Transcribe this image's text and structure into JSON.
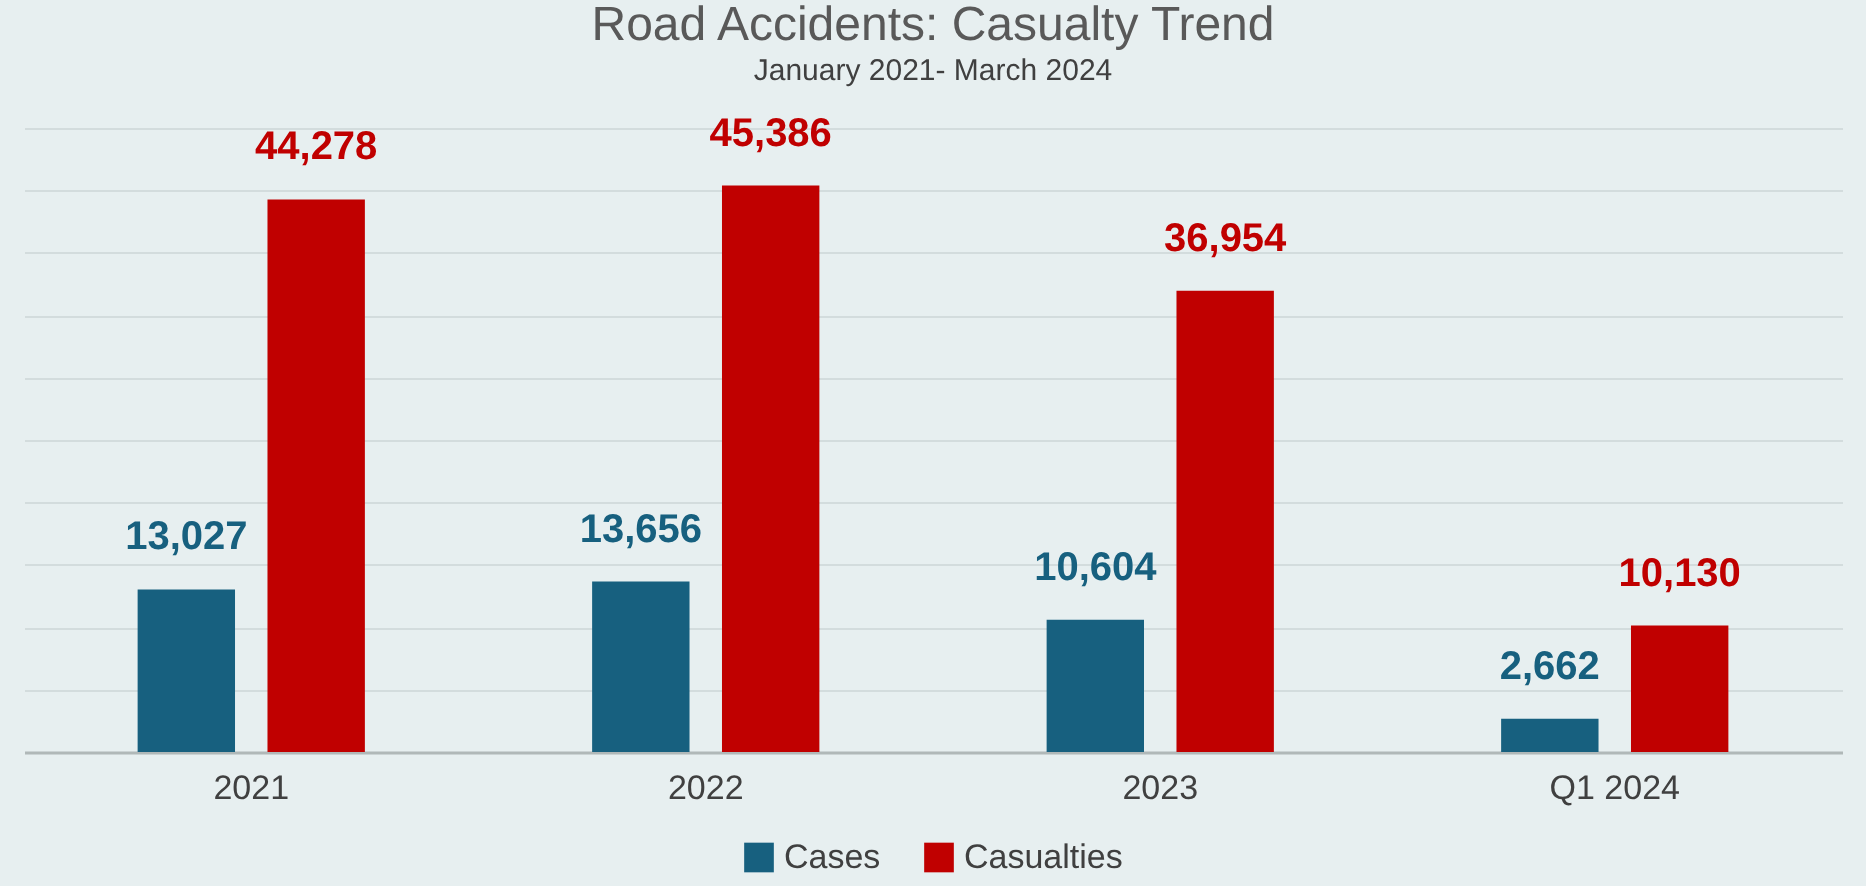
{
  "chart_data": {
    "type": "bar",
    "title": "Road Accidents: Casualty Trend",
    "subtitle": "January 2021- March 2024",
    "categories": [
      "2021",
      "2022",
      "2023",
      "Q1 2024"
    ],
    "series": [
      {
        "name": "Cases",
        "color": "#17607f",
        "values": [
          13027,
          13656,
          10604,
          2662
        ],
        "value_labels": [
          "13,027",
          "13,656",
          "10,604",
          "2,662"
        ]
      },
      {
        "name": "Casualties",
        "color": "#c00000",
        "values": [
          44278,
          45386,
          36954,
          10130
        ],
        "value_labels": [
          "44,278",
          "45,386",
          "36,954",
          "10,130"
        ]
      }
    ],
    "tick_labels": "x",
    "grid": "y",
    "legend": "bottom"
  }
}
